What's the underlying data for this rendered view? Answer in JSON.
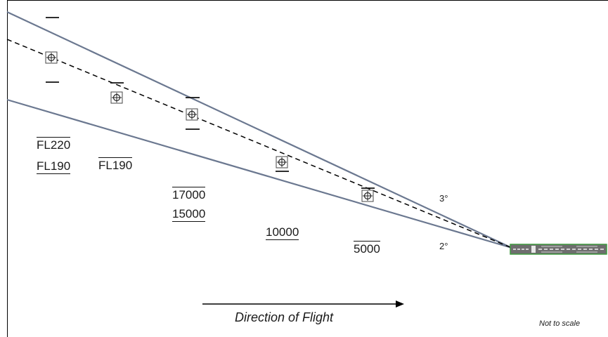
{
  "diagram": {
    "title": "",
    "angles": {
      "upper": "3°",
      "lower": "2°"
    },
    "altitude_labels": [
      {
        "text": "FL220",
        "bar": "over"
      },
      {
        "text": "FL190",
        "bar": "under"
      },
      {
        "text": "FL190",
        "bar": "over"
      },
      {
        "text": "17000",
        "bar": "over"
      },
      {
        "text": "15000",
        "bar": "under"
      },
      {
        "text": "10000",
        "bar": "under"
      },
      {
        "text": "5000",
        "bar": "over"
      }
    ],
    "direction_label": "Direction of Flight",
    "scale_note": "Not to scale",
    "colors": {
      "glide_lines": "#6b7890",
      "path_dashed": "#000000",
      "runway_fill": "#6e6e6e",
      "runway_border": "#3f9a3f"
    }
  }
}
